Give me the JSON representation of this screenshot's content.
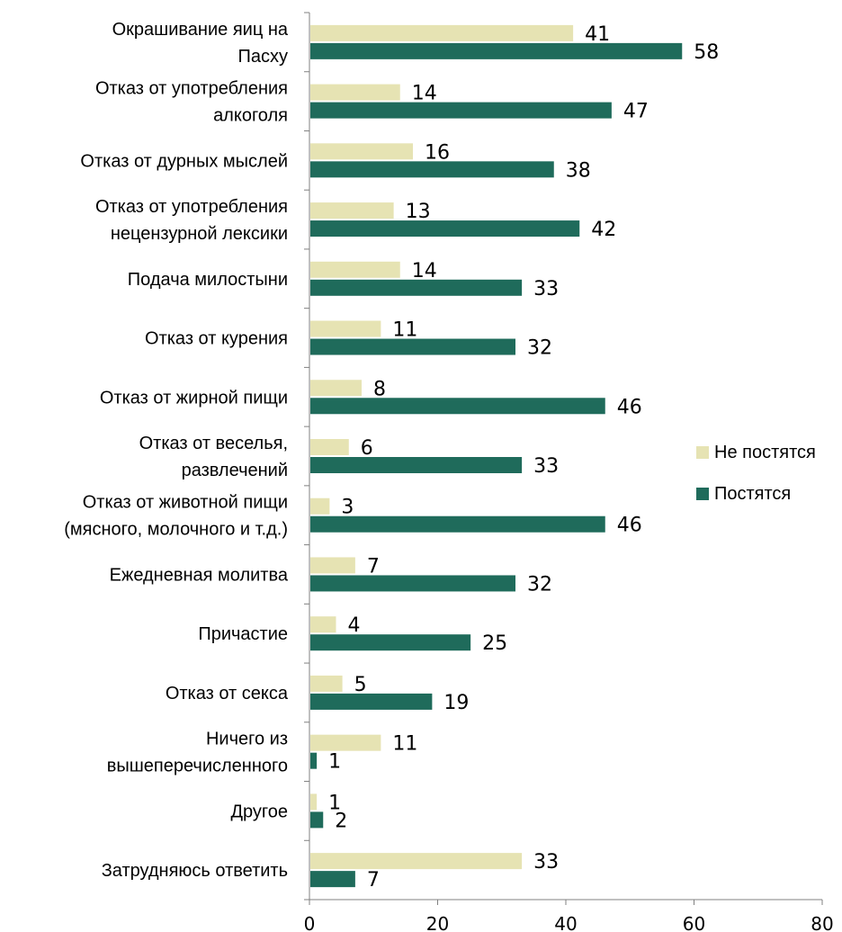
{
  "chart_data": {
    "type": "bar",
    "orientation": "horizontal",
    "categories": [
      "Окрашивание яиц на Пасху",
      "Отказ от употребления алкоголя",
      "Отказ от дурных мыслей",
      "Отказ от употребления нецензурной лексики",
      "Подача милостыни",
      "Отказ от курения",
      "Отказ от жирной пищи",
      "Отказ от веселья, развлечений",
      "Отказ от животной пищи (мясного, молочного и т.д.)",
      "Ежедневная молитва",
      "Причастие",
      "Отказ от секса",
      "Ничего из вышеперечисленного",
      "Другое",
      "Затрудняюсь ответить"
    ],
    "category_lines": [
      [
        "Окрашивание яиц на",
        "Пасху"
      ],
      [
        "Отказ от употребления",
        "алкоголя"
      ],
      [
        "Отказ от дурных мыслей"
      ],
      [
        "Отказ от употребления",
        "нецензурной лексики"
      ],
      [
        "Подача милостыни"
      ],
      [
        "Отказ от курения"
      ],
      [
        "Отказ от жирной пищи"
      ],
      [
        "Отказ от веселья,",
        "развлечений"
      ],
      [
        "Отказ от животной пищи",
        "(мясного, молочного и т.д.)"
      ],
      [
        "Ежедневная молитва"
      ],
      [
        "Причастие"
      ],
      [
        "Отказ от секса"
      ],
      [
        "Ничего из",
        "вышеперечисленного"
      ],
      [
        "Другое"
      ],
      [
        "Затрудняюсь ответить"
      ]
    ],
    "series": [
      {
        "name": "Не постятся",
        "color": "#e6e3b3",
        "values": [
          41,
          14,
          16,
          13,
          14,
          11,
          8,
          6,
          3,
          7,
          4,
          5,
          11,
          1,
          33
        ]
      },
      {
        "name": "Постятся",
        "color": "#1f6b5b",
        "values": [
          58,
          47,
          38,
          42,
          33,
          32,
          46,
          33,
          46,
          32,
          25,
          19,
          1,
          2,
          7
        ]
      }
    ],
    "xlim": [
      0,
      80
    ],
    "xticks": [
      "0",
      "20",
      "40",
      "60",
      "80"
    ],
    "grid": false,
    "legend_position": "right"
  }
}
